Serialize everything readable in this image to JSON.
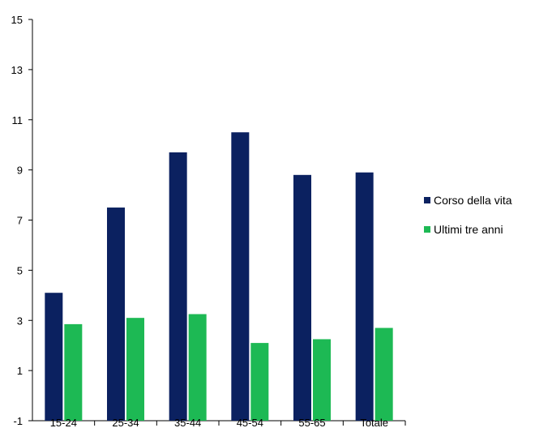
{
  "chart_data": {
    "type": "bar",
    "categories": [
      "15-24",
      "25-34",
      "35-44",
      "45-54",
      "55-65",
      "Totale"
    ],
    "series": [
      {
        "name": "Corso della vita",
        "color": "#0b2160",
        "values": [
          4.1,
          7.5,
          9.7,
          10.5,
          8.8,
          8.9
        ]
      },
      {
        "name": "Ultimi tre anni",
        "color": "#1db954",
        "values": [
          2.85,
          3.1,
          3.25,
          2.1,
          2.25,
          2.7
        ]
      }
    ],
    "ylim": [
      -1,
      15
    ],
    "yticks": [
      -1,
      1,
      3,
      5,
      7,
      9,
      11,
      13,
      15
    ],
    "grid": false,
    "legend_position": "right",
    "title": "",
    "xlabel": "",
    "ylabel": ""
  }
}
